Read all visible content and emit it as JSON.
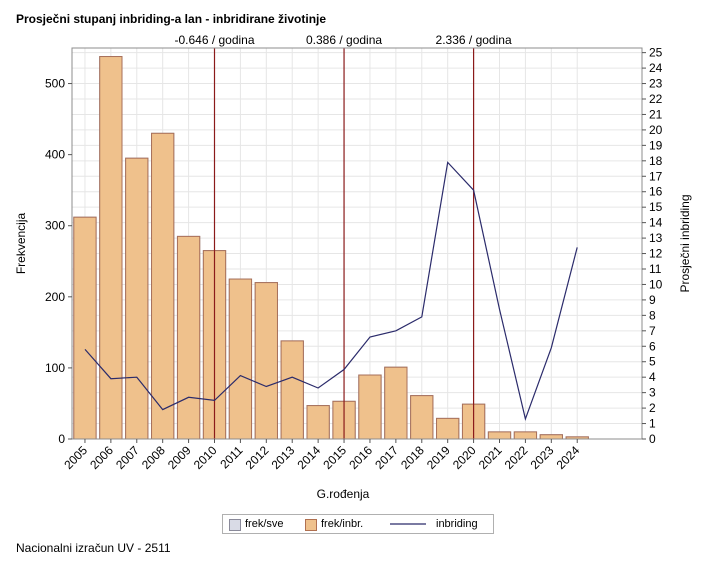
{
  "chart_data": {
    "type": "bar+line",
    "title": "Prosječni stupanj inbriding-a lan - inbridirane životinje",
    "xlabel": "G.rođenja",
    "ylabel": "Frekvencija",
    "y2label": "Prosječni inbriding",
    "categories": [
      "2005",
      "2006",
      "2007",
      "2008",
      "2009",
      "2010",
      "2011",
      "2012",
      "2013",
      "2014",
      "2015",
      "2016",
      "2017",
      "2018",
      "2019",
      "2020",
      "2021",
      "2022",
      "2023",
      "2024"
    ],
    "series": [
      {
        "name": "frek/sve",
        "type": "bar",
        "color": "#d9dbe6",
        "values": [
          312,
          538,
          395,
          430,
          285,
          265,
          225,
          220,
          138,
          47,
          53,
          90,
          101,
          61,
          29,
          49,
          10,
          10,
          6,
          3
        ]
      },
      {
        "name": "frek/inbr.",
        "type": "bar",
        "color": "#efc18c",
        "values": [
          312,
          538,
          395,
          430,
          285,
          265,
          225,
          220,
          138,
          47,
          53,
          90,
          101,
          61,
          29,
          49,
          10,
          10,
          6,
          3
        ]
      },
      {
        "name": "inbriding",
        "type": "line",
        "axis": "y2",
        "color": "#2b2b6b",
        "values": [
          5.8,
          3.9,
          4.0,
          1.9,
          2.7,
          2.5,
          4.1,
          3.4,
          4.0,
          3.3,
          4.5,
          6.6,
          7.0,
          7.9,
          17.9,
          16.1,
          8.4,
          1.3,
          5.9,
          12.4
        ]
      }
    ],
    "ylim": [
      0,
      550
    ],
    "yticks": [
      0,
      100,
      200,
      300,
      400,
      500
    ],
    "y2lim": [
      0,
      25.3
    ],
    "y2ticks": [
      0,
      1,
      2,
      3,
      4,
      5,
      6,
      7,
      8,
      9,
      10,
      11,
      12,
      13,
      14,
      15,
      16,
      17,
      18,
      19,
      20,
      21,
      22,
      23,
      24,
      25
    ],
    "xlim_padding_categories": 2,
    "reference_lines": [
      {
        "category": "2010",
        "label": "-0.646 / godina",
        "color": "#8b1a1a"
      },
      {
        "category": "2015",
        "label": "0.386 / godina",
        "color": "#8b1a1a"
      },
      {
        "category": "2020",
        "label": "2.336 / godina",
        "color": "#8b1a1a"
      }
    ],
    "grid": true,
    "legend_position": "bottom"
  },
  "legend": {
    "items": [
      {
        "label": "frek/sve"
      },
      {
        "label": "frek/inbr."
      },
      {
        "label": "inbriding"
      }
    ]
  },
  "footer": "Nacionalni izračun UV - 2511"
}
